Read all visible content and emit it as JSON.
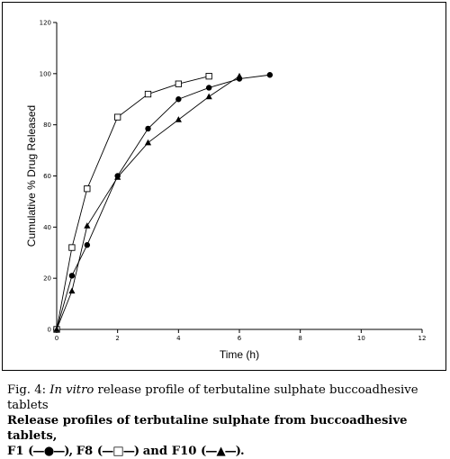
{
  "chart_data": {
    "type": "line",
    "xlabel": "Time (h)",
    "ylabel": "Cumulative % Drug Released",
    "xlim": [
      0,
      12
    ],
    "ylim": [
      0,
      120
    ],
    "xticks": [
      0,
      2,
      4,
      6,
      8,
      10,
      12
    ],
    "yticks": [
      0,
      20,
      40,
      60,
      80,
      100,
      120
    ],
    "grid": false,
    "series": [
      {
        "name": "F1",
        "marker": "circle-filled",
        "color": "#000000",
        "x": [
          0,
          0.5,
          1,
          2,
          3,
          4,
          5,
          6,
          7
        ],
        "y": [
          0,
          21,
          33,
          60,
          78.5,
          90,
          94.5,
          98,
          99.5
        ]
      },
      {
        "name": "F8",
        "marker": "square-open",
        "color": "#000000",
        "x": [
          0,
          0.5,
          1,
          2,
          3,
          4,
          5
        ],
        "y": [
          0,
          32,
          55,
          83,
          92,
          96,
          99
        ]
      },
      {
        "name": "F10",
        "marker": "triangle-filled",
        "color": "#000000",
        "x": [
          0,
          0.5,
          1,
          2,
          3,
          4,
          5,
          6
        ],
        "y": [
          0,
          15,
          40.5,
          59.5,
          73,
          82,
          91,
          99
        ]
      }
    ]
  },
  "caption": {
    "fig_label": "Fig. 4:",
    "title_italic": "In vitro",
    "title_rest": "release profile of terbutaline sulphate buccoadhesive tablets",
    "subtitle_text": "Release profiles of terbutaline sulphate from buccoadhesive tablets,",
    "f1_label": "F1",
    "f1_glyph": "(—●—),",
    "f8_label": "F8",
    "f8_glyph": "(—□—)",
    "and_word": "and",
    "f10_label": "F10",
    "f10_glyph": "(—▲—)."
  }
}
